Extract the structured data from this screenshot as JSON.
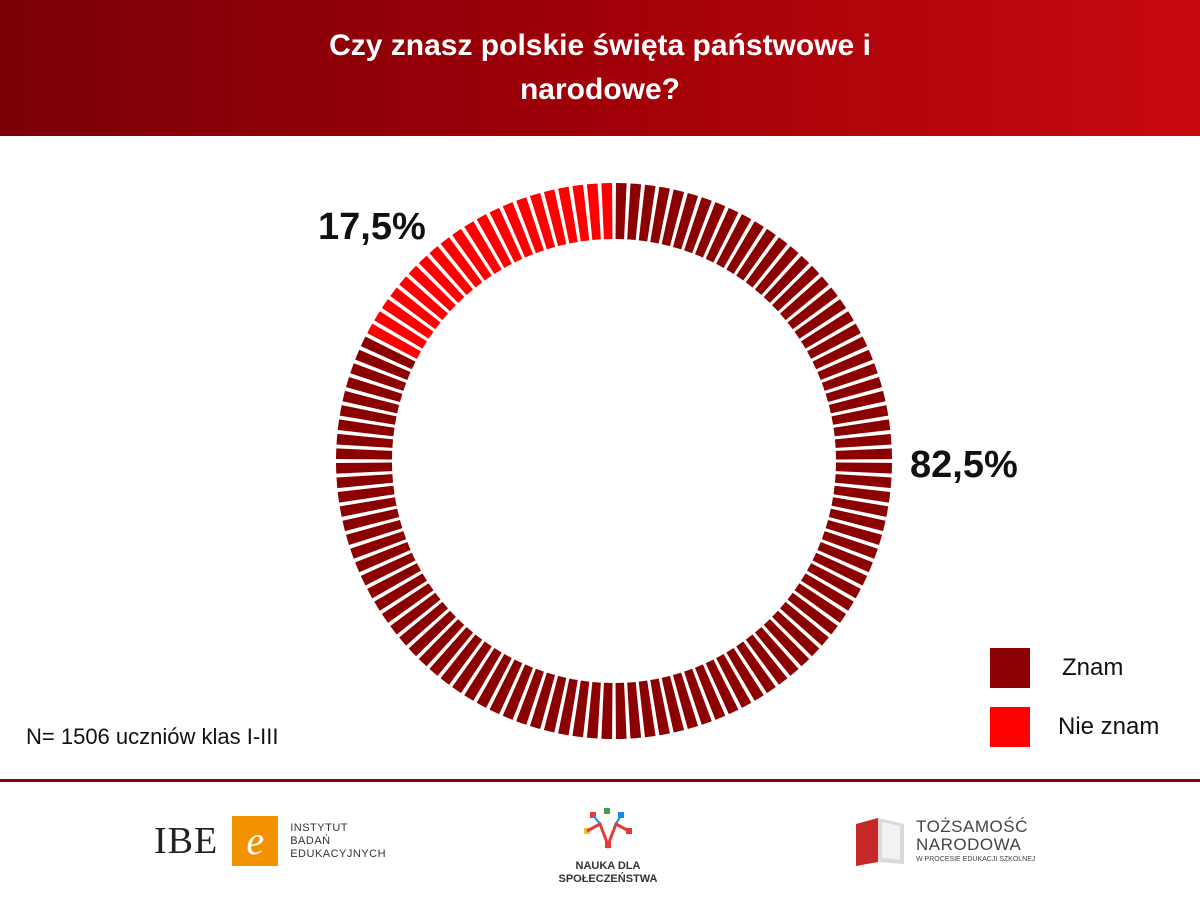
{
  "header": {
    "title": "Czy znasz polskie święta państwowe i narodowe?"
  },
  "chart_data": {
    "type": "pie",
    "variant": "donut",
    "title": "Czy znasz polskie święta państwowe i narodowe?",
    "categories": [
      "Znam",
      "Nie znam"
    ],
    "values": [
      82.5,
      17.5
    ],
    "value_labels": [
      "82,5%",
      "17,5%"
    ],
    "colors": [
      "#8b0000",
      "#ff0000"
    ],
    "legend": "bottom-right"
  },
  "note": "N= 1506 uczniów klas I-III",
  "footer": {
    "ibe": {
      "short": "IBE",
      "glyph": "e",
      "line1": "INSTYTUT",
      "line2": "BADAŃ",
      "line3": "EDUKACYJNYCH"
    },
    "nauka": {
      "line1": "NAUKA DLA",
      "line2": "SPOŁECZEŃSTWA"
    },
    "tozsamosc": {
      "line1": "TOŻSAMOŚĆ",
      "line2": "NARODOWA",
      "line3": "W PROCESIE EDUKACJI SZKOLNEJ"
    }
  }
}
